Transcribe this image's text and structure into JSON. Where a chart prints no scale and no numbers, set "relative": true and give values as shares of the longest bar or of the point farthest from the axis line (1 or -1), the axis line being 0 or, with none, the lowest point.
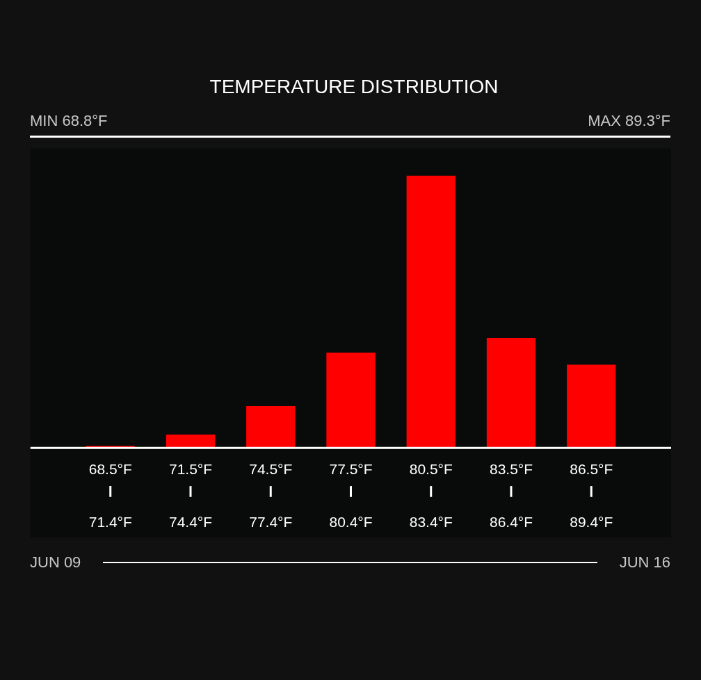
{
  "chart_data": {
    "type": "bar",
    "title": "TEMPERATURE DISTRIBUTION",
    "categories": [
      "68.5°F\n71.4°F",
      "71.5°F\n74.4°F",
      "74.5°F\n77.4°F",
      "77.5°F\n80.4°F",
      "80.5°F\n83.4°F",
      "83.5°F\n86.4°F",
      "86.5°F\n89.4°F"
    ],
    "values": [
      0.008,
      0.049,
      0.154,
      0.35,
      1,
      0.404,
      0.306
    ],
    "color": "#ff0000",
    "relative": true,
    "annotations": [
      "MIN 68.8°F",
      "MAX 89.3°F",
      "JUN 09",
      "JUN 16"
    ]
  }
}
